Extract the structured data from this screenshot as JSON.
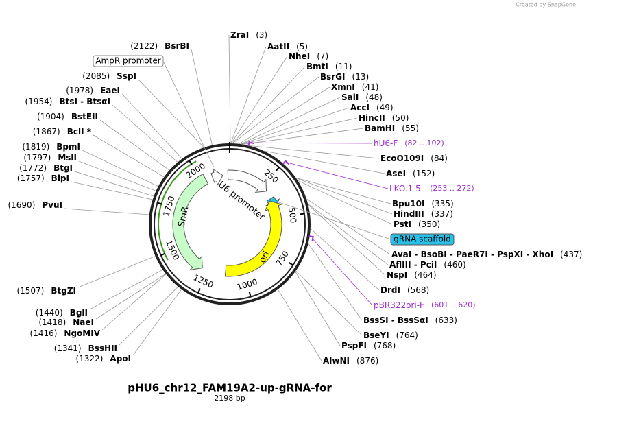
{
  "watermark": "Created by SnapGene",
  "plasmid": {
    "name": "pHU6_chr12_FAM19A2-up-gRNA-for",
    "length": 2198,
    "length_label": "2198 bp",
    "ring_ticks": [
      250,
      500,
      750,
      1000,
      1250,
      1500,
      1750,
      2000
    ]
  },
  "enzymes": [
    {
      "name": "ZraI",
      "site": 3,
      "site_label": "(3)"
    },
    {
      "name": "AatII",
      "site": 5,
      "site_label": "(5)"
    },
    {
      "name": "NheI",
      "site": 7,
      "site_label": "(7)"
    },
    {
      "name": "BmtI",
      "site": 11,
      "site_label": "(11)"
    },
    {
      "name": "BsrGI",
      "site": 13,
      "site_label": "(13)"
    },
    {
      "name": "XmnI",
      "site": 41,
      "site_label": "(41)"
    },
    {
      "name": "SalI",
      "site": 48,
      "site_label": "(48)"
    },
    {
      "name": "AccI",
      "site": 49,
      "site_label": "(49)"
    },
    {
      "name": "HincII",
      "site": 50,
      "site_label": "(50)"
    },
    {
      "name": "BamHI",
      "site": 55,
      "site_label": "(55)"
    },
    {
      "name": "EcoO109I",
      "site": 84,
      "site_label": "(84)"
    },
    {
      "name": "AseI",
      "site": 152,
      "site_label": "(152)"
    },
    {
      "name": "Bpu10I",
      "site": 335,
      "site_label": "(335)"
    },
    {
      "name": "HindIII",
      "site": 337,
      "site_label": "(337)"
    },
    {
      "name": "PstI",
      "site": 350,
      "site_label": "(350)"
    },
    {
      "name": "AvaI  -  BsoBI  -  PaeR7I  -  PspXI  -  XhoI",
      "site": 437,
      "site_label": "(437)"
    },
    {
      "name": "AflIII  -  PciI",
      "site": 460,
      "site_label": "(460)"
    },
    {
      "name": "NspI",
      "site": 464,
      "site_label": "(464)"
    },
    {
      "name": "DrdI",
      "site": 568,
      "site_label": "(568)"
    },
    {
      "name": "BssSI  -  BssSαI",
      "site": 633,
      "site_label": "(633)"
    },
    {
      "name": "BseYI",
      "site": 764,
      "site_label": "(764)"
    },
    {
      "name": "PspFI",
      "site": 768,
      "site_label": "(768)"
    },
    {
      "name": "AlwNI",
      "site": 876,
      "site_label": "(876)"
    },
    {
      "name": "ApoI",
      "site": 1322,
      "site_label": "(1322)"
    },
    {
      "name": "BssHII",
      "site": 1341,
      "site_label": "(1341)"
    },
    {
      "name": "NgoMIV",
      "site": 1416,
      "site_label": "(1416)"
    },
    {
      "name": "NaeI",
      "site": 1418,
      "site_label": "(1418)"
    },
    {
      "name": "BglI",
      "site": 1440,
      "site_label": "(1440)"
    },
    {
      "name": "BtgZI",
      "site": 1507,
      "site_label": "(1507)"
    },
    {
      "name": "PvuI",
      "site": 1690,
      "site_label": "(1690)"
    },
    {
      "name": "BlpI",
      "site": 1757,
      "site_label": "(1757)"
    },
    {
      "name": "BtgI",
      "site": 1772,
      "site_label": "(1772)"
    },
    {
      "name": "MslI",
      "site": 1797,
      "site_label": "(1797)"
    },
    {
      "name": "BpmI",
      "site": 1819,
      "site_label": "(1819)"
    },
    {
      "name": "BclI *",
      "site": 1867,
      "site_label": "(1867)"
    },
    {
      "name": "BstEII",
      "site": 1904,
      "site_label": "(1904)"
    },
    {
      "name": "BtsI  -  BtsαI",
      "site": 1954,
      "site_label": "(1954)"
    },
    {
      "name": "EaeI",
      "site": 1978,
      "site_label": "(1978)"
    },
    {
      "name": "SspI",
      "site": 2085,
      "site_label": "(2085)"
    },
    {
      "name": "BsrBI",
      "site": 2122,
      "site_label": "(2122)"
    }
  ],
  "primers": [
    {
      "name": "hU6-F",
      "start": 82,
      "end": 102,
      "range": "(82 .. 102)"
    },
    {
      "name": "LKO.1 5'",
      "start": 253,
      "end": 272,
      "range": "(253 .. 272)"
    },
    {
      "name": "pBR322ori-F",
      "start": 601,
      "end": 620,
      "range": "(601 .. 620)"
    }
  ],
  "features": [
    {
      "label": "U6 promoter"
    },
    {
      "label": "SmR"
    },
    {
      "label": "ori"
    },
    {
      "label": "AmpR promoter"
    },
    {
      "label": "gRNA scaffold"
    }
  ]
}
